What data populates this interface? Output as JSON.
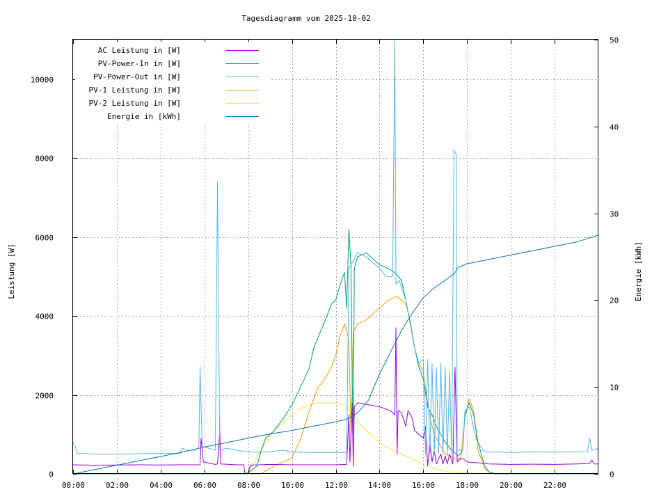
{
  "chart_data": {
    "type": "line",
    "title": "Tagesdiagramm vom 2025-10-02",
    "xlabel": "",
    "ylabel": "Leistung [W]",
    "y2label": "Energie [kWh]",
    "xlim": [
      0,
      24
    ],
    "ylim": [
      0,
      11000
    ],
    "y2lim": [
      0,
      50
    ],
    "x_ticks": [
      0,
      2,
      4,
      6,
      8,
      10,
      12,
      14,
      16,
      18,
      20,
      22
    ],
    "x_tick_labels": [
      "00:00",
      "02:00",
      "04:00",
      "06:00",
      "08:00",
      "10:00",
      "12:00",
      "14:00",
      "16:00",
      "18:00",
      "20:00",
      "22:00"
    ],
    "y_ticks": [
      0,
      2000,
      4000,
      6000,
      8000,
      10000
    ],
    "y_tick_labels": [
      "0",
      "2000",
      "4000",
      "6000",
      "8000",
      "10000"
    ],
    "y2_ticks": [
      0,
      10,
      20,
      30,
      40,
      50
    ],
    "y2_tick_labels": [
      "0",
      "10",
      "20",
      "30",
      "40",
      "50"
    ],
    "grid": true,
    "legend_position": "top-left",
    "series": [
      {
        "name": "AC Leistung in [W]",
        "color": "#9400d3",
        "axis": "y",
        "points": [
          [
            0,
            230
          ],
          [
            1,
            220
          ],
          [
            2,
            225
          ],
          [
            3,
            230
          ],
          [
            4,
            225
          ],
          [
            5,
            230
          ],
          [
            5.8,
            230
          ],
          [
            5.85,
            900
          ],
          [
            5.95,
            300
          ],
          [
            6.5,
            240
          ],
          [
            6.6,
            250
          ],
          [
            6.7,
            1100
          ],
          [
            6.75,
            250
          ],
          [
            7.5,
            230
          ],
          [
            7.8,
            230
          ],
          [
            7.85,
            20
          ],
          [
            8.0,
            0
          ],
          [
            8.1,
            220
          ],
          [
            9,
            240
          ],
          [
            10,
            230
          ],
          [
            11,
            230
          ],
          [
            12,
            230
          ],
          [
            12.5,
            240
          ],
          [
            12.6,
            1500
          ],
          [
            12.65,
            300
          ],
          [
            12.75,
            1800
          ],
          [
            12.8,
            200
          ],
          [
            12.85,
            1700
          ],
          [
            13,
            1800
          ],
          [
            13.5,
            1750
          ],
          [
            14,
            1700
          ],
          [
            14.5,
            1600
          ],
          [
            14.7,
            1500
          ],
          [
            14.75,
            3700
          ],
          [
            14.8,
            500
          ],
          [
            14.85,
            1600
          ],
          [
            15,
            1550
          ],
          [
            15.2,
            1200
          ],
          [
            15.3,
            1600
          ],
          [
            15.5,
            1400
          ],
          [
            15.6,
            1100
          ],
          [
            15.8,
            1000
          ],
          [
            16,
            900
          ],
          [
            16.1,
            1200
          ],
          [
            16.2,
            200
          ],
          [
            16.3,
            800
          ],
          [
            16.4,
            300
          ],
          [
            16.5,
            600
          ],
          [
            16.6,
            250
          ],
          [
            16.8,
            500
          ],
          [
            16.9,
            250
          ],
          [
            17.0,
            450
          ],
          [
            17.1,
            250
          ],
          [
            17.2,
            500
          ],
          [
            17.35,
            250
          ],
          [
            17.45,
            2700
          ],
          [
            17.55,
            300
          ],
          [
            17.7,
            400
          ],
          [
            17.9,
            350
          ],
          [
            18,
            300
          ],
          [
            18.5,
            280
          ],
          [
            19,
            250
          ],
          [
            20,
            240
          ],
          [
            21,
            245
          ],
          [
            22,
            240
          ],
          [
            23,
            250
          ],
          [
            23.6,
            260
          ],
          [
            23.7,
            350
          ],
          [
            23.8,
            250
          ],
          [
            24,
            250
          ]
        ]
      },
      {
        "name": "PV-Power-In in [W]",
        "color": "#009e73",
        "axis": "y",
        "points": [
          [
            0,
            0
          ],
          [
            7.9,
            0
          ],
          [
            8.0,
            30
          ],
          [
            8.4,
            200
          ],
          [
            8.6,
            600
          ],
          [
            8.8,
            900
          ],
          [
            9.2,
            1100
          ],
          [
            9.6,
            1400
          ],
          [
            10,
            1750
          ],
          [
            10.4,
            2200
          ],
          [
            10.8,
            2700
          ],
          [
            11,
            3200
          ],
          [
            11.3,
            3600
          ],
          [
            11.6,
            4000
          ],
          [
            11.8,
            4300
          ],
          [
            12,
            4400
          ],
          [
            12.2,
            4800
          ],
          [
            12.4,
            5100
          ],
          [
            12.5,
            4200
          ],
          [
            12.6,
            6200
          ],
          [
            12.7,
            5200
          ],
          [
            12.75,
            2400
          ],
          [
            12.8,
            1000
          ],
          [
            12.85,
            5200
          ],
          [
            13,
            5500
          ],
          [
            13.4,
            5600
          ],
          [
            13.6,
            5500
          ],
          [
            13.8,
            5400
          ],
          [
            14,
            5300
          ],
          [
            14.4,
            5200
          ],
          [
            14.7,
            5100
          ],
          [
            15,
            4900
          ],
          [
            15.2,
            4400
          ],
          [
            15.4,
            3800
          ],
          [
            15.6,
            3200
          ],
          [
            15.8,
            2700
          ],
          [
            16,
            2400
          ],
          [
            16.2,
            1700
          ],
          [
            16.4,
            1500
          ],
          [
            16.6,
            1200
          ],
          [
            16.8,
            1000
          ],
          [
            17,
            800
          ],
          [
            17.3,
            600
          ],
          [
            17.6,
            450
          ],
          [
            17.8,
            600
          ],
          [
            17.9,
            1500
          ],
          [
            18.1,
            1800
          ],
          [
            18.3,
            1500
          ],
          [
            18.5,
            800
          ],
          [
            18.8,
            200
          ],
          [
            19.0,
            50
          ],
          [
            19.3,
            0
          ],
          [
            24,
            0
          ]
        ]
      },
      {
        "name": "PV-Power-Out in [W]",
        "color": "#56b4e9",
        "axis": "y",
        "points": [
          [
            0,
            800
          ],
          [
            0.1,
            700
          ],
          [
            0.2,
            520
          ],
          [
            1,
            500
          ],
          [
            2,
            500
          ],
          [
            3,
            510
          ],
          [
            4,
            520
          ],
          [
            4.9,
            520
          ],
          [
            5.0,
            650
          ],
          [
            5.2,
            600
          ],
          [
            5.6,
            600
          ],
          [
            5.75,
            700
          ],
          [
            5.8,
            2700
          ],
          [
            5.9,
            700
          ],
          [
            6.2,
            650
          ],
          [
            6.5,
            600
          ],
          [
            6.6,
            7400
          ],
          [
            6.65,
            4000
          ],
          [
            6.7,
            600
          ],
          [
            7,
            650
          ],
          [
            7.5,
            600
          ],
          [
            8,
            550
          ],
          [
            8.5,
            550
          ],
          [
            9,
            560
          ],
          [
            9.6,
            600
          ],
          [
            10,
            550
          ],
          [
            11,
            540
          ],
          [
            12,
            540
          ],
          [
            12.5,
            540
          ],
          [
            12.6,
            5200
          ],
          [
            12.8,
            5400
          ],
          [
            13,
            5600
          ],
          [
            13.4,
            5500
          ],
          [
            13.8,
            5300
          ],
          [
            14,
            5200
          ],
          [
            14.3,
            5000
          ],
          [
            14.6,
            5000
          ],
          [
            14.7,
            11000
          ],
          [
            14.75,
            4800
          ],
          [
            14.9,
            4900
          ],
          [
            15.2,
            4400
          ],
          [
            15.4,
            3800
          ],
          [
            15.6,
            3200
          ],
          [
            15.8,
            2800
          ],
          [
            16,
            2900
          ],
          [
            16.1,
            500
          ],
          [
            16.2,
            2900
          ],
          [
            16.3,
            500
          ],
          [
            16.4,
            2800
          ],
          [
            16.5,
            500
          ],
          [
            16.6,
            2700
          ],
          [
            16.7,
            500
          ],
          [
            16.8,
            2800
          ],
          [
            16.9,
            500
          ],
          [
            17.0,
            2700
          ],
          [
            17.1,
            500
          ],
          [
            17.2,
            2600
          ],
          [
            17.3,
            500
          ],
          [
            17.4,
            8200
          ],
          [
            17.5,
            8100
          ],
          [
            17.55,
            600
          ],
          [
            17.8,
            600
          ],
          [
            17.9,
            1600
          ],
          [
            18.1,
            1700
          ],
          [
            18.4,
            900
          ],
          [
            18.7,
            600
          ],
          [
            19,
            550
          ],
          [
            19.5,
            560
          ],
          [
            20,
            540
          ],
          [
            20.5,
            550
          ],
          [
            21,
            560
          ],
          [
            22,
            550
          ],
          [
            23,
            560
          ],
          [
            23.5,
            560
          ],
          [
            23.6,
            900
          ],
          [
            23.7,
            600
          ],
          [
            24,
            650
          ]
        ]
      },
      {
        "name": "PV-1 Leistung in [W]",
        "color": "#e69f00",
        "axis": "y",
        "points": [
          [
            0,
            0
          ],
          [
            8.6,
            0
          ],
          [
            8.8,
            80
          ],
          [
            9.2,
            200
          ],
          [
            9.6,
            300
          ],
          [
            10,
            400
          ],
          [
            10.4,
            900
          ],
          [
            10.8,
            1600
          ],
          [
            11.2,
            2200
          ],
          [
            11.5,
            2400
          ],
          [
            11.8,
            2700
          ],
          [
            12,
            3000
          ],
          [
            12.2,
            3500
          ],
          [
            12.4,
            3800
          ],
          [
            12.6,
            3400
          ],
          [
            12.7,
            900
          ],
          [
            12.8,
            3600
          ],
          [
            13,
            3800
          ],
          [
            13.4,
            3900
          ],
          [
            13.8,
            4100
          ],
          [
            14,
            4200
          ],
          [
            14.4,
            4400
          ],
          [
            14.8,
            4500
          ],
          [
            15.2,
            4300
          ],
          [
            15.4,
            3900
          ],
          [
            15.6,
            3200
          ],
          [
            15.8,
            2800
          ],
          [
            16,
            2600
          ],
          [
            16.2,
            1800
          ],
          [
            16.4,
            1200
          ],
          [
            16.6,
            900
          ],
          [
            16.8,
            700
          ],
          [
            17,
            500
          ],
          [
            17.4,
            400
          ],
          [
            17.7,
            350
          ],
          [
            17.9,
            1400
          ],
          [
            18.1,
            1900
          ],
          [
            18.3,
            1600
          ],
          [
            18.5,
            600
          ],
          [
            18.8,
            150
          ],
          [
            19,
            50
          ],
          [
            19.3,
            0
          ],
          [
            24,
            0
          ]
        ]
      },
      {
        "name": "PV-2 Leistung in [W]",
        "color": "#f0e442",
        "axis": "y",
        "points": [
          [
            0,
            0
          ],
          [
            7.9,
            0
          ],
          [
            8.0,
            50
          ],
          [
            8.4,
            400
          ],
          [
            8.8,
            800
          ],
          [
            9.2,
            1100
          ],
          [
            9.6,
            1300
          ],
          [
            10,
            1500
          ],
          [
            10.4,
            1650
          ],
          [
            10.8,
            1750
          ],
          [
            11.2,
            1800
          ],
          [
            11.6,
            1800
          ],
          [
            12,
            1800
          ],
          [
            12.4,
            1750
          ],
          [
            12.8,
            1500
          ],
          [
            13.2,
            1200
          ],
          [
            13.6,
            1000
          ],
          [
            14,
            800
          ],
          [
            14.4,
            650
          ],
          [
            14.8,
            550
          ],
          [
            15.2,
            450
          ],
          [
            15.6,
            350
          ],
          [
            16,
            250
          ],
          [
            16.4,
            150
          ],
          [
            16.8,
            100
          ],
          [
            17.2,
            50
          ],
          [
            17.6,
            30
          ],
          [
            18,
            20
          ],
          [
            18.5,
            10
          ],
          [
            19,
            0
          ],
          [
            24,
            0
          ]
        ]
      },
      {
        "name": "Energie in [kWh]",
        "color": "#0072b2",
        "axis": "y2",
        "points": [
          [
            0,
            0
          ],
          [
            1,
            0.5
          ],
          [
            2,
            1.0
          ],
          [
            3,
            1.5
          ],
          [
            4,
            2.0
          ],
          [
            5,
            2.5
          ],
          [
            6,
            3.1
          ],
          [
            7,
            3.6
          ],
          [
            8,
            4.1
          ],
          [
            9,
            4.6
          ],
          [
            10,
            5.0
          ],
          [
            11,
            5.5
          ],
          [
            12,
            6.0
          ],
          [
            12.5,
            6.3
          ],
          [
            13,
            7.0
          ],
          [
            13.5,
            8.5
          ],
          [
            14,
            11.5
          ],
          [
            14.5,
            14.0
          ],
          [
            15,
            16.5
          ],
          [
            15.5,
            18.5
          ],
          [
            16,
            20.3
          ],
          [
            16.5,
            21.4
          ],
          [
            17,
            22.3
          ],
          [
            17.4,
            23.0
          ],
          [
            17.6,
            23.8
          ],
          [
            18,
            24.2
          ],
          [
            19,
            24.7
          ],
          [
            20,
            25.2
          ],
          [
            21,
            25.7
          ],
          [
            22,
            26.2
          ],
          [
            23,
            26.7
          ],
          [
            24,
            27.5
          ]
        ]
      }
    ]
  }
}
